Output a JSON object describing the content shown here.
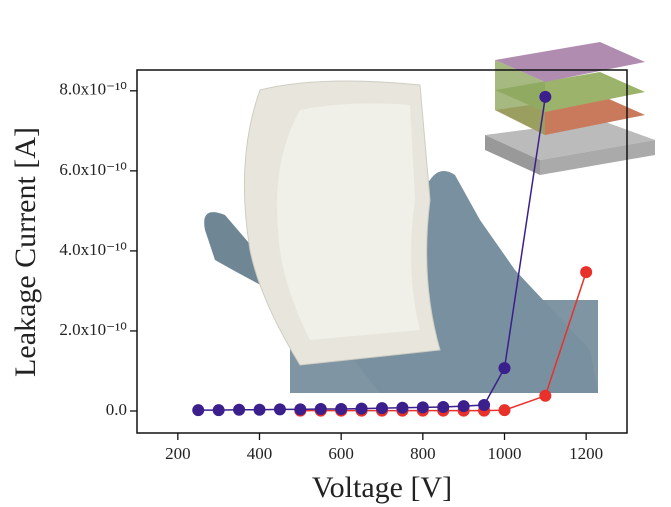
{
  "chart_data": {
    "type": "scatter",
    "x_label": "Voltage [V]",
    "y_label": "Leakage Current [A]",
    "xlim": [
      100,
      1300
    ],
    "xticks": [
      200,
      400,
      600,
      800,
      1000,
      1200
    ],
    "ylim": [
      -5.5e-11,
      8.52e-10
    ],
    "yticks": [
      {
        "value": 0,
        "label": "0.0"
      },
      {
        "value": 2e-10,
        "label": "2.0x10⁻¹⁰"
      },
      {
        "value": 4e-10,
        "label": "4.0x10⁻¹⁰"
      },
      {
        "value": 6e-10,
        "label": "6.0x10⁻¹⁰"
      },
      {
        "value": 8e-10,
        "label": "8.0x10⁻¹⁰"
      }
    ],
    "series": [
      {
        "color": "#e8312a",
        "x": [
          500,
          550,
          600,
          650,
          700,
          750,
          800,
          850,
          900,
          950,
          1000,
          1100,
          1200
        ],
        "values": [
          1e-12,
          1e-12,
          1e-12,
          1e-12,
          1e-12,
          1e-12,
          1e-12,
          1e-12,
          1e-12,
          1e-12,
          2e-12,
          3.8e-11,
          3.47e-10
        ]
      },
      {
        "color": "#3b1f8c",
        "x": [
          250,
          300,
          350,
          400,
          450,
          500,
          550,
          600,
          650,
          700,
          750,
          800,
          850,
          900,
          950,
          1000,
          1100
        ],
        "values": [
          2e-12,
          2e-12,
          3e-12,
          3e-12,
          4e-12,
          4e-12,
          5e-12,
          5e-12,
          6e-12,
          7e-12,
          8e-12,
          9e-12,
          1e-11,
          1.2e-11,
          1.5e-11,
          1.07e-10,
          7.85e-10
        ]
      }
    ]
  }
}
